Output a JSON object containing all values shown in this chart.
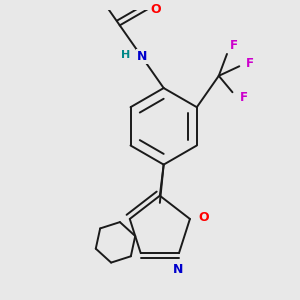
{
  "bg_color": "#e8e8e8",
  "bond_color": "#1a1a1a",
  "bond_width": 1.4,
  "atom_colors": {
    "O": "#ff0000",
    "N": "#0000cc",
    "H": "#008888",
    "F": "#cc00cc",
    "N_ring": "#0000cc",
    "O_ring": "#ff0000"
  }
}
